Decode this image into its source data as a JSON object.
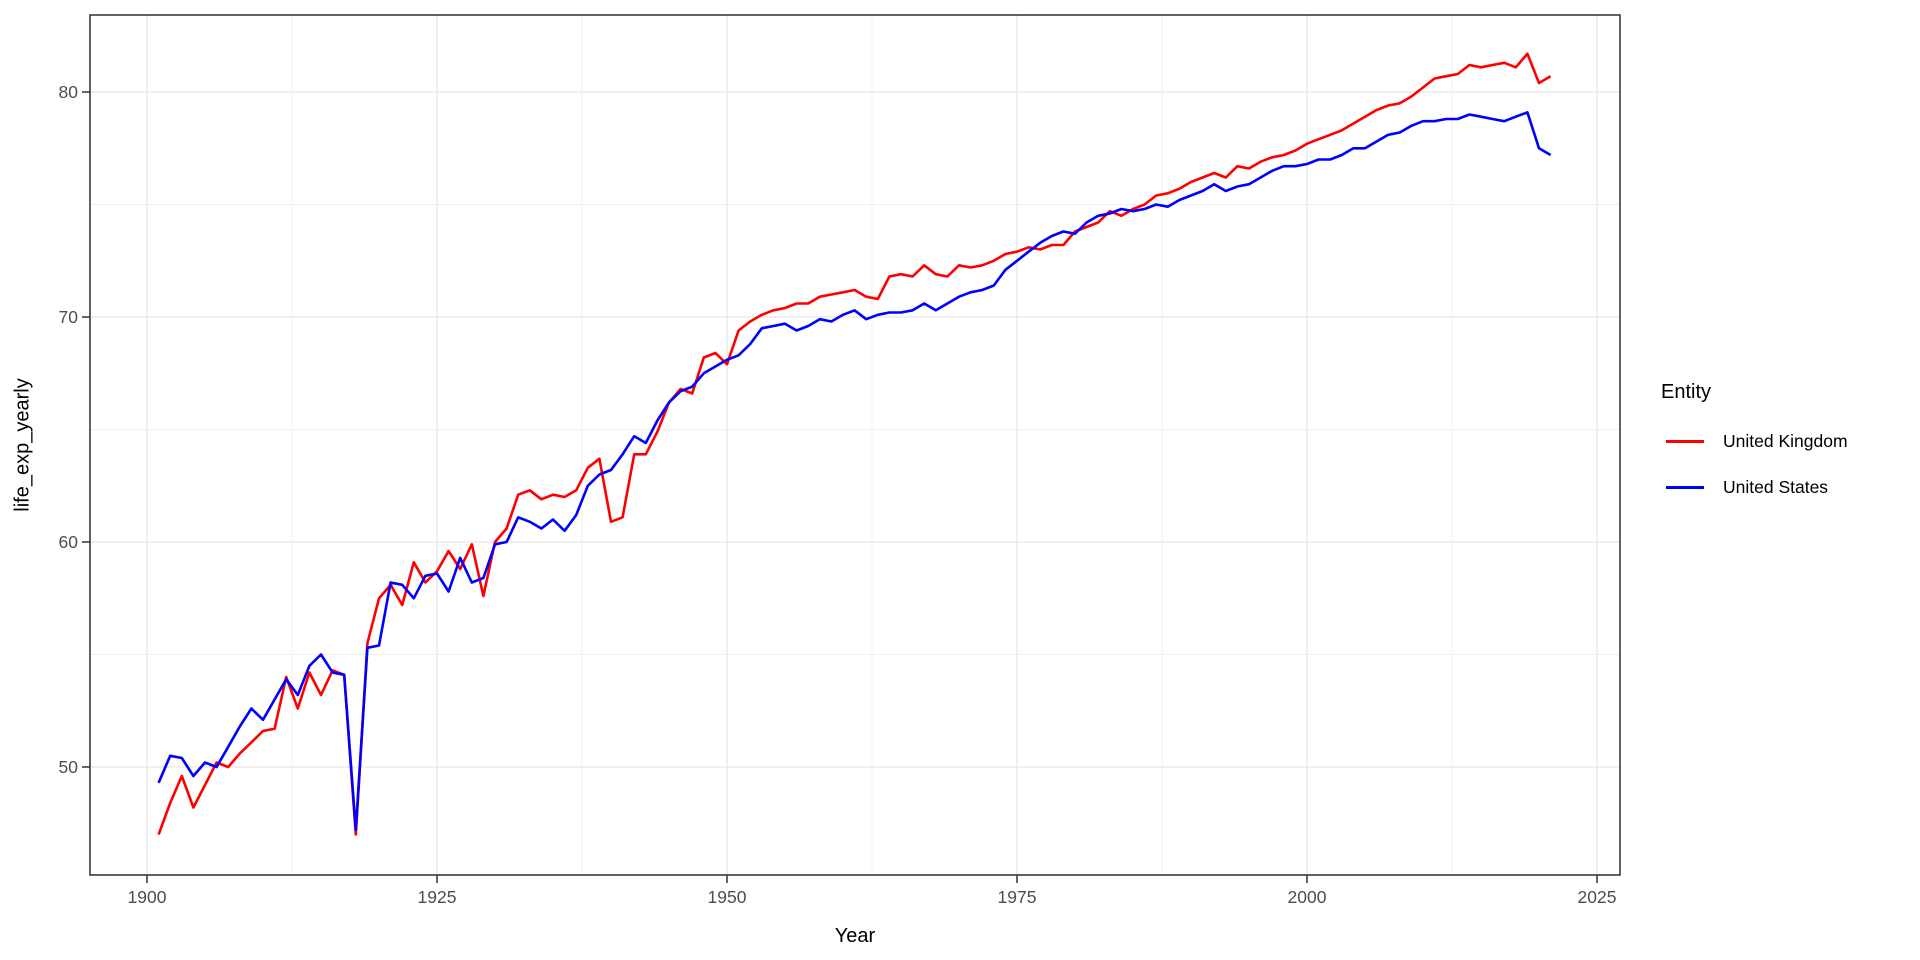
{
  "chart_data": {
    "type": "line",
    "title": "",
    "xlabel": "Year",
    "ylabel": "life_exp_yearly",
    "grid": true,
    "panel_border_color": "#2E2E2E",
    "grid_major_color": "#E8E8E8",
    "grid_minor_color": "#F0F0F0",
    "tick_label_color": "#4D4D4D",
    "legend": {
      "title": "Entity",
      "position": "right"
    },
    "x_axis": {
      "ticks": [
        1900,
        1925,
        1950,
        1975,
        2000,
        2025
      ],
      "minor_ticks": [
        1912.5,
        1937.5,
        1962.5,
        1987.5,
        2012.5
      ],
      "range": [
        1895.1,
        2027.0
      ]
    },
    "y_axis": {
      "ticks": [
        50,
        60,
        70,
        80
      ],
      "minor_ticks": [
        55,
        65,
        75
      ],
      "range": [
        45.2,
        83.4
      ]
    },
    "series": [
      {
        "name": "United Kingdom",
        "color": "#FF0000",
        "start_year": 1901,
        "end_year": 2021,
        "values": [
          47.0,
          48.4,
          49.6,
          48.2,
          49.2,
          50.2,
          50.0,
          50.6,
          51.1,
          51.6,
          51.7,
          54.0,
          52.6,
          54.2,
          53.2,
          54.3,
          54.1,
          47.0,
          55.5,
          57.5,
          58.1,
          57.2,
          59.1,
          58.2,
          58.7,
          59.6,
          58.8,
          59.9,
          57.6,
          60.0,
          60.6,
          62.1,
          62.3,
          61.9,
          62.1,
          62.0,
          62.3,
          63.3,
          63.7,
          60.9,
          61.1,
          63.9,
          63.9,
          64.9,
          66.2,
          66.8,
          66.6,
          68.2,
          68.4,
          67.9,
          69.4,
          69.8,
          70.1,
          70.3,
          70.4,
          70.6,
          70.6,
          70.9,
          71.0,
          71.1,
          71.2,
          70.9,
          70.8,
          71.8,
          71.9,
          71.8,
          72.3,
          71.9,
          71.8,
          72.3,
          72.2,
          72.3,
          72.5,
          72.8,
          72.9,
          73.1,
          73.0,
          73.2,
          73.2,
          73.8,
          74.0,
          74.2,
          74.7,
          74.5,
          74.8,
          75.0,
          75.4,
          75.5,
          75.7,
          76.0,
          76.2,
          76.4,
          76.2,
          76.7,
          76.6,
          76.9,
          77.1,
          77.2,
          77.4,
          77.7,
          77.9,
          78.1,
          78.3,
          78.6,
          78.9,
          79.2,
          79.4,
          79.5,
          79.8,
          80.2,
          80.6,
          80.7,
          80.8,
          81.2,
          81.1,
          81.2,
          81.3,
          81.1,
          81.7,
          80.4,
          80.7
        ]
      },
      {
        "name": "United States",
        "color": "#0000FF",
        "start_year": 1901,
        "end_year": 2021,
        "values": [
          49.3,
          50.5,
          50.4,
          49.6,
          50.2,
          50.0,
          50.9,
          51.8,
          52.6,
          52.1,
          53.0,
          53.9,
          53.2,
          54.5,
          55.0,
          54.2,
          54.1,
          47.2,
          55.3,
          55.4,
          58.2,
          58.1,
          57.5,
          58.5,
          58.6,
          57.8,
          59.3,
          58.2,
          58.4,
          59.9,
          60.0,
          61.1,
          60.9,
          60.6,
          61.0,
          60.5,
          61.2,
          62.5,
          63.0,
          63.2,
          63.9,
          64.7,
          64.4,
          65.4,
          66.2,
          66.7,
          66.9,
          67.5,
          67.8,
          68.1,
          68.3,
          68.8,
          69.5,
          69.6,
          69.7,
          69.4,
          69.6,
          69.9,
          69.8,
          70.1,
          70.3,
          69.9,
          70.1,
          70.2,
          70.2,
          70.3,
          70.6,
          70.3,
          70.6,
          70.9,
          71.1,
          71.2,
          71.4,
          72.1,
          72.5,
          72.9,
          73.3,
          73.6,
          73.8,
          73.7,
          74.2,
          74.5,
          74.6,
          74.8,
          74.7,
          74.8,
          75.0,
          74.9,
          75.2,
          75.4,
          75.6,
          75.9,
          75.6,
          75.8,
          75.9,
          76.2,
          76.5,
          76.7,
          76.7,
          76.8,
          77.0,
          77.0,
          77.2,
          77.5,
          77.5,
          77.8,
          78.1,
          78.2,
          78.5,
          78.7,
          78.7,
          78.8,
          78.8,
          79.0,
          78.9,
          78.8,
          78.7,
          78.9,
          79.1,
          77.5,
          77.2
        ]
      }
    ]
  }
}
